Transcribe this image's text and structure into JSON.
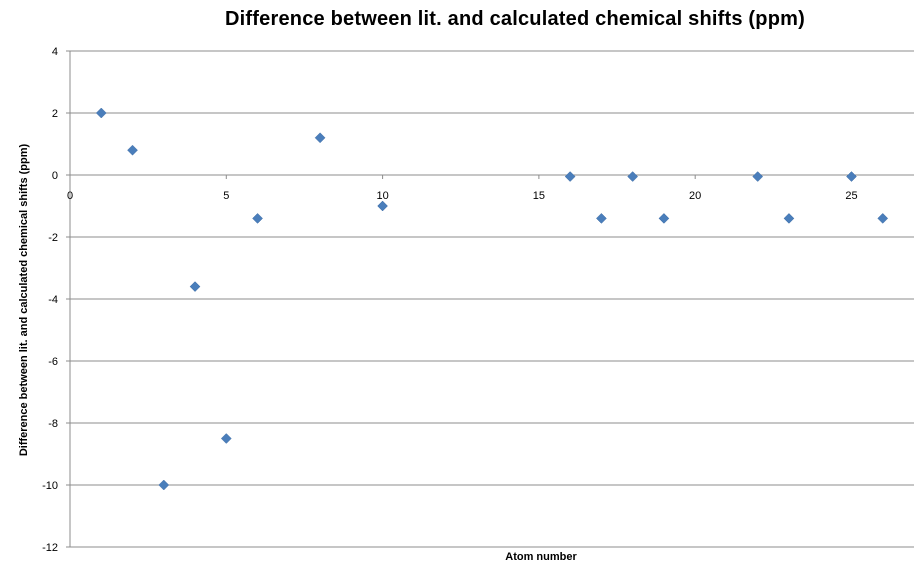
{
  "chart_data": {
    "type": "scatter",
    "title": "Difference between lit. and calculated chemical shifts (ppm)",
    "xlabel": "Atom number",
    "ylabel": "Difference between lit. and calculated  chemical shifts (ppm)",
    "xlim": [
      0,
      27
    ],
    "ylim": [
      -12,
      4
    ],
    "xticks": [
      0,
      5,
      10,
      15,
      20,
      25
    ],
    "yticks": [
      4,
      2,
      0,
      -2,
      -4,
      -6,
      -8,
      -10,
      -12
    ],
    "grid": true,
    "marker": "diamond",
    "color": "#4a7ebb",
    "points": [
      {
        "x": 1,
        "y": 2
      },
      {
        "x": 2,
        "y": 0.8
      },
      {
        "x": 3,
        "y": -10
      },
      {
        "x": 4,
        "y": -3.6
      },
      {
        "x": 5,
        "y": -8.5
      },
      {
        "x": 6,
        "y": -1.4
      },
      {
        "x": 8,
        "y": 1.2
      },
      {
        "x": 10,
        "y": -1
      },
      {
        "x": 16,
        "y": -0.05
      },
      {
        "x": 17,
        "y": -1.4
      },
      {
        "x": 18,
        "y": -0.05
      },
      {
        "x": 19,
        "y": -1.4
      },
      {
        "x": 22,
        "y": -0.05
      },
      {
        "x": 23,
        "y": -1.4
      },
      {
        "x": 25,
        "y": -0.05
      },
      {
        "x": 26,
        "y": -1.4
      }
    ]
  }
}
